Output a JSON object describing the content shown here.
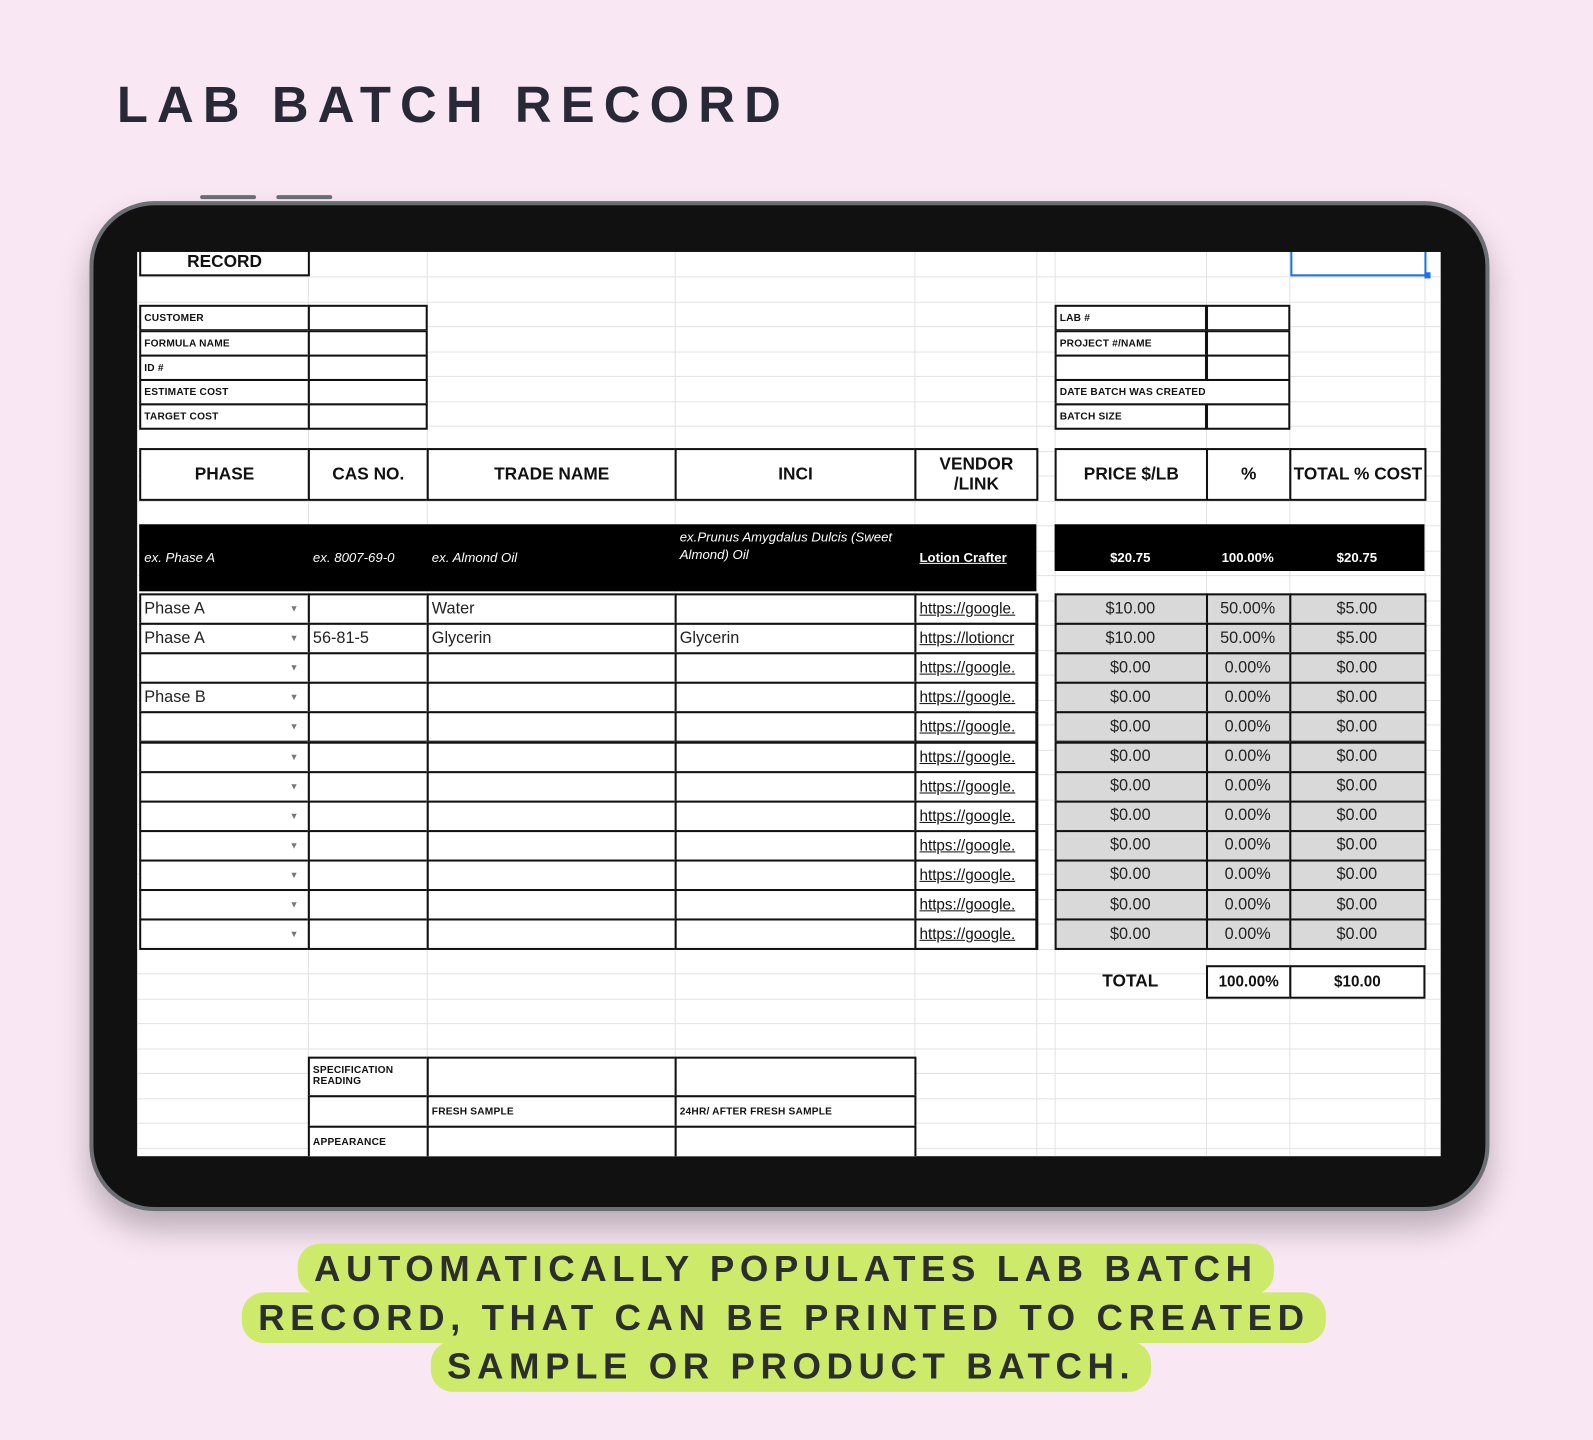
{
  "heading": "LAB BATCH RECORD",
  "caption": [
    "AUTOMATICALLY POPULATES LAB BATCH",
    "RECORD, THAT CAN BE PRINTED TO CREATED",
    "SAMPLE OR PRODUCT BATCH."
  ],
  "sheet": {
    "record_label": "RECORD",
    "left_info": [
      "CUSTOMER",
      "FORMULA NAME",
      "ID #",
      "ESTIMATE COST",
      "TARGET COST"
    ],
    "right_info": [
      "LAB #",
      "PROJECT #/NAME",
      "",
      "DATE BATCH WAS CREATED",
      "BATCH SIZE"
    ],
    "headers": [
      "PHASE",
      "CAS NO.",
      "TRADE NAME",
      "INCI",
      "VENDOR /LINK",
      "PRICE  $/LB",
      "%",
      "TOTAL % COST"
    ],
    "example": [
      "ex. Phase A",
      "ex. 8007-69-0",
      "ex. Almond Oil",
      "ex.Prunus Amygdalus Dulcis (Sweet Almond) Oil",
      "Lotion Crafter",
      "$20.75",
      "100.00%",
      "$20.75"
    ],
    "rows": [
      [
        "Phase A",
        "",
        "Water",
        "",
        "https://google.",
        "$10.00",
        "50.00%",
        "$5.00"
      ],
      [
        "Phase A",
        "56-81-5",
        "Glycerin",
        "Glycerin",
        "https://lotioncr",
        "$10.00",
        "50.00%",
        "$5.00"
      ],
      [
        "",
        "",
        "",
        "",
        "https://google.",
        "$0.00",
        "0.00%",
        "$0.00"
      ],
      [
        "Phase B",
        "",
        "",
        "",
        "https://google.",
        "$0.00",
        "0.00%",
        "$0.00"
      ],
      [
        "",
        "",
        "",
        "",
        "https://google.",
        "$0.00",
        "0.00%",
        "$0.00"
      ],
      [
        "",
        "",
        "",
        "",
        "https://google.",
        "$0.00",
        "0.00%",
        "$0.00"
      ],
      [
        "",
        "",
        "",
        "",
        "https://google.",
        "$0.00",
        "0.00%",
        "$0.00"
      ],
      [
        "",
        "",
        "",
        "",
        "https://google.",
        "$0.00",
        "0.00%",
        "$0.00"
      ],
      [
        "",
        "",
        "",
        "",
        "https://google.",
        "$0.00",
        "0.00%",
        "$0.00"
      ],
      [
        "",
        "",
        "",
        "",
        "https://google.",
        "$0.00",
        "0.00%",
        "$0.00"
      ],
      [
        "",
        "",
        "",
        "",
        "https://google.",
        "$0.00",
        "0.00%",
        "$0.00"
      ],
      [
        "",
        "",
        "",
        "",
        "https://google.",
        "$0.00",
        "0.00%",
        "$0.00"
      ]
    ],
    "total": {
      "label": "TOTAL",
      "percent": "100.00%",
      "cost": "$10.00"
    },
    "spec": {
      "title": "SPECIFICATION READING",
      "fresh": "FRESH SAMPLE",
      "after": "24HR/ AFTER FRESH SAMPLE",
      "appearance": "APPEARANCE"
    }
  },
  "colors": {
    "background": "#f9e7f3",
    "caption_highlight": "#cdea6b",
    "selection": "#1a73e8",
    "computed_cells": "#d9d9d9"
  }
}
